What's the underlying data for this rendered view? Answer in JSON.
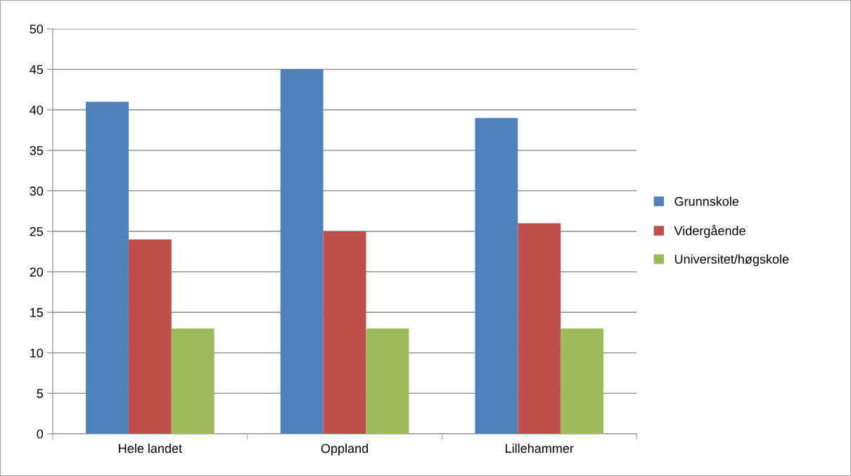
{
  "chart_data": {
    "type": "bar",
    "categories": [
      "Hele landet",
      "Oppland",
      "Lillehammer"
    ],
    "series": [
      {
        "name": "Grunnskole",
        "color": "#4f81bd",
        "values": [
          41,
          45,
          39
        ]
      },
      {
        "name": "Vidergående",
        "color": "#c0504d",
        "values": [
          24,
          25,
          26
        ]
      },
      {
        "name": "Universitet/høgskole",
        "color": "#9bbb59",
        "values": [
          13,
          13,
          13
        ]
      }
    ],
    "ylim": [
      0,
      50
    ],
    "yticks": [
      0,
      5,
      10,
      15,
      20,
      25,
      30,
      35,
      40,
      45,
      50
    ],
    "grid": "y",
    "legend": "right"
  }
}
